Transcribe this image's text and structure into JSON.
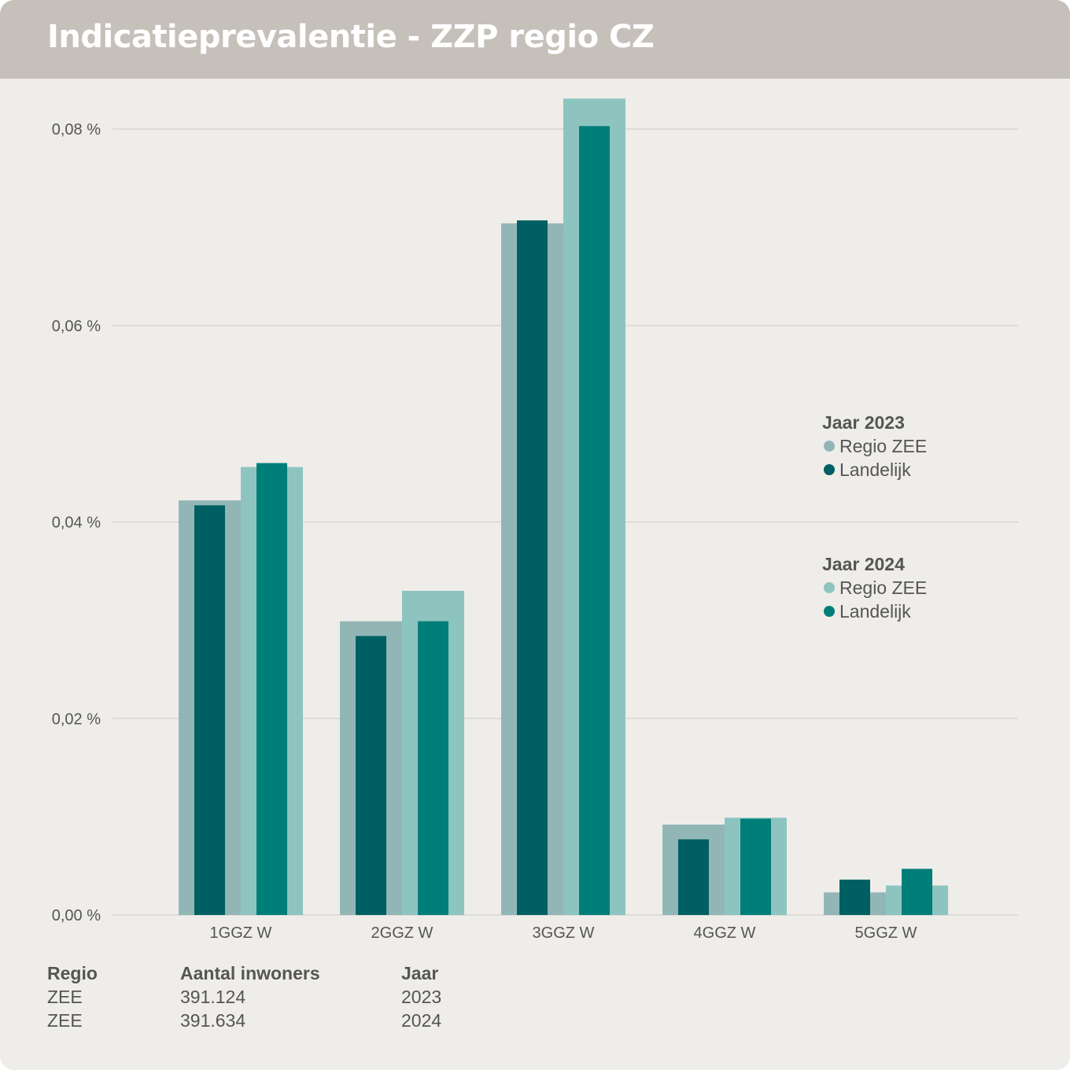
{
  "title": "Indicatieprevalentie - ZZP regio CZ",
  "chart_data": {
    "type": "bar",
    "categories": [
      "1GGZ W",
      "2GGZ W",
      "3GGZ W",
      "4GGZ W",
      "5GGZ W"
    ],
    "y_tick_labels": [
      "0,00 %",
      "0,02 %",
      "0,04 %",
      "0,06 %",
      "0,08 %"
    ],
    "ylim": [
      0,
      0.08
    ],
    "y_unit": "%",
    "grid": true,
    "series": [
      {
        "name": "Regio ZEE",
        "year": "2023",
        "color": "#92b6b6",
        "values": [
          0.0422,
          0.0299,
          0.0704,
          0.0092,
          0.0023
        ]
      },
      {
        "name": "Landelijk",
        "year": "2023",
        "color": "#005f62",
        "values": [
          0.0417,
          0.0284,
          0.0707,
          0.0077,
          0.0036
        ]
      },
      {
        "name": "Regio ZEE",
        "year": "2024",
        "color": "#8ec4c0",
        "values": [
          0.0456,
          0.033,
          0.0831,
          0.0099,
          0.003
        ]
      },
      {
        "name": "Landelijk",
        "year": "2024",
        "color": "#007e7a",
        "values": [
          0.046,
          0.0299,
          0.0803,
          0.0098,
          0.0047
        ]
      }
    ],
    "legend": {
      "placement": "right",
      "groups": [
        {
          "title": "Jaar 2023",
          "items": [
            {
              "label": "Regio ZEE",
              "color": "#92b6b6"
            },
            {
              "label": "Landelijk",
              "color": "#005f62"
            }
          ]
        },
        {
          "title": "Jaar 2024",
          "items": [
            {
              "label": "Regio ZEE",
              "color": "#8ec4c0"
            },
            {
              "label": "Landelijk",
              "color": "#007e7a"
            }
          ]
        }
      ]
    }
  },
  "info_table": {
    "headers": [
      "Regio",
      "Aantal inwoners",
      "Jaar"
    ],
    "rows": [
      [
        "ZEE",
        "391.124",
        "2023"
      ],
      [
        "ZEE",
        "391.634",
        "2024"
      ]
    ]
  }
}
